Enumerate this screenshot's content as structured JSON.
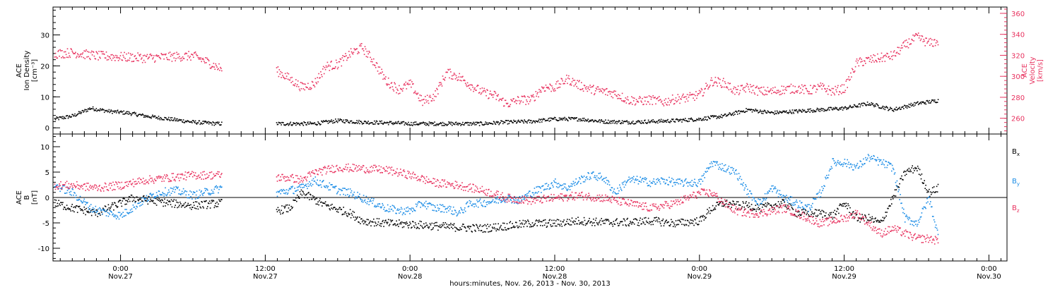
{
  "colors": {
    "black": "#000000",
    "pink": "#e8325f",
    "blue": "#1a8ce6"
  },
  "xaxis": {
    "label": "hours:minutes, Nov. 26, 2013 - Nov. 30, 2013",
    "ticks": [
      {
        "x": 18,
        "time": "0:00",
        "date": "Nov.27"
      },
      {
        "x": 30,
        "time": "12:00",
        "date": "Nov.27"
      },
      {
        "x": 42,
        "time": "0:00",
        "date": "Nov.28"
      },
      {
        "x": 54,
        "time": "12:00",
        "date": "Nov.28"
      },
      {
        "x": 66,
        "time": "0:00",
        "date": "Nov.29"
      },
      {
        "x": 78,
        "time": "12:00",
        "date": "Nov.29"
      },
      {
        "x": 90,
        "time": "0:00",
        "date": "Nov.30"
      }
    ]
  },
  "chart_data": [
    {
      "type": "scatter",
      "xunit": "hours since Nov. 26, 2013 00:00",
      "xlim": [
        12.4,
        91.5
      ],
      "left_axis": {
        "label_lines": [
          "ACE",
          "Ion Density",
          "[cm⁻³]"
        ],
        "ylim": [
          -2,
          39
        ],
        "ticks": [
          0,
          10,
          20,
          30
        ]
      },
      "right_axis": {
        "label_lines": [
          "ACE",
          "Velocity",
          "[km/s]"
        ],
        "ylim": [
          245,
          366
        ],
        "ticks": [
          260,
          280,
          300,
          320,
          340,
          360
        ]
      },
      "series": [
        {
          "axis": "left",
          "color": "black",
          "gap": [
            26.5,
            30.8
          ],
          "x": [
            12.5,
            14,
            15.5,
            17,
            18.5,
            20,
            22,
            24,
            26,
            26.4,
            30.9,
            32,
            34,
            36,
            38,
            40,
            42,
            44,
            46,
            48,
            50,
            52,
            54,
            56,
            58,
            60,
            62,
            64,
            66,
            68,
            70,
            72,
            74,
            76,
            78,
            80,
            82,
            84,
            85.8
          ],
          "y": [
            3,
            4,
            6.5,
            5.5,
            5,
            4,
            3,
            2,
            1.5,
            1.5,
            1.5,
            1.5,
            1.5,
            2.5,
            2,
            1.8,
            1.5,
            1.5,
            1.5,
            1.5,
            2,
            2.2,
            3,
            3,
            2.2,
            2,
            2.2,
            2.5,
            3,
            4,
            6,
            5,
            5.5,
            6,
            6.5,
            8,
            6,
            8,
            9
          ]
        },
        {
          "axis": "right",
          "color": "pink",
          "gap": [
            26.5,
            30.8
          ],
          "x": [
            12.5,
            14,
            16,
            18,
            20,
            22,
            24,
            25,
            26.4,
            30.9,
            32,
            33,
            34,
            35,
            36,
            37,
            38,
            39,
            40,
            41,
            42,
            43,
            44,
            45,
            46,
            47,
            48,
            49,
            50,
            51,
            52,
            53,
            54,
            55,
            56,
            57,
            58,
            59,
            60,
            61,
            62,
            63,
            64,
            65,
            66,
            67,
            68,
            69,
            70,
            71,
            72,
            73,
            74,
            75,
            76,
            77,
            78,
            79,
            80,
            81,
            82,
            83,
            84,
            85,
            85.8
          ],
          "y": [
            322,
            323,
            320,
            319,
            318,
            319,
            320,
            315,
            307,
            306,
            298,
            290,
            293,
            310,
            312,
            322,
            328,
            314,
            296,
            288,
            293,
            276,
            282,
            304,
            300,
            292,
            285,
            282,
            274,
            278,
            278,
            290,
            290,
            298,
            292,
            288,
            286,
            284,
            278,
            277,
            278,
            276,
            279,
            280,
            283,
            296,
            294,
            286,
            290,
            286,
            286,
            288,
            289,
            287,
            290,
            286,
            289,
            313,
            316,
            318,
            320,
            330,
            338,
            332,
            334
          ]
        }
      ]
    },
    {
      "type": "scatter",
      "xunit": "hours since Nov. 26, 2013 00:00",
      "xlim": [
        12.4,
        91.5
      ],
      "left_axis": {
        "label_lines": [
          "ACE",
          "B",
          "[nT]"
        ],
        "ylim": [
          -12.5,
          12.5
        ],
        "ticks": [
          -10,
          -5,
          0,
          5,
          10
        ]
      },
      "legend": {
        "placement": "right",
        "entries": [
          "Bx",
          "By",
          "Bz"
        ]
      },
      "series": [
        {
          "name": "Bx",
          "color": "black",
          "gap": [
            26.5,
            30.8
          ],
          "x": [
            12.5,
            14,
            16,
            17.5,
            19,
            20.5,
            22,
            24,
            26.4,
            30.9,
            32,
            33,
            35,
            37,
            38,
            40,
            42,
            44,
            46,
            48,
            50,
            52,
            54,
            56,
            58,
            60,
            62,
            64,
            66,
            67,
            68,
            69,
            70,
            71,
            72,
            73,
            74,
            75,
            76,
            77,
            78,
            79,
            80,
            81,
            82,
            83,
            84,
            85,
            85.8
          ],
          "y": [
            -1,
            -2,
            -3,
            -1.5,
            0,
            -0.5,
            -1,
            -1.5,
            -1,
            -2.5,
            -2,
            1,
            -1.5,
            -3,
            -4.5,
            -5,
            -5.2,
            -5.5,
            -5.8,
            -6,
            -5.5,
            -5,
            -5,
            -4.5,
            -4.8,
            -4.8,
            -4.5,
            -5,
            -4.5,
            -2,
            -1,
            -1.5,
            -1.5,
            -2,
            -1.5,
            -1,
            -3,
            -3,
            -3,
            -3.5,
            -1,
            -4,
            -4,
            -5,
            0,
            5,
            6,
            1,
            2
          ]
        },
        {
          "name": "By",
          "color": "blue",
          "gap": [
            26.5,
            30.8
          ],
          "x": [
            12.5,
            14,
            15.5,
            17,
            18,
            19.5,
            21,
            22.5,
            24,
            26.4,
            30.9,
            32,
            33,
            34,
            35,
            36,
            37,
            38,
            39,
            40,
            41,
            42,
            43,
            44,
            45,
            46,
            47,
            48,
            49,
            50,
            51,
            52,
            53,
            54,
            55,
            56,
            57,
            58,
            59,
            60,
            61,
            62,
            63,
            64,
            65,
            66,
            67,
            68,
            69,
            70,
            71,
            72,
            73,
            74,
            75,
            76,
            77,
            78,
            79,
            80,
            81,
            82,
            83,
            84,
            85,
            85.8
          ],
          "y": [
            2.5,
            1,
            -2,
            -3,
            -3.5,
            -1,
            1,
            1.5,
            0.5,
            2,
            1,
            1.5,
            2,
            3.5,
            2.5,
            1.5,
            1,
            0,
            -1,
            -2,
            -2.5,
            -2.5,
            -1,
            -2,
            -2,
            -3,
            -1,
            -1,
            -0.5,
            0,
            -0.5,
            1,
            2,
            3,
            2,
            3.5,
            4.5,
            4,
            1,
            3.5,
            3.5,
            3,
            3.5,
            3,
            3,
            3,
            7,
            6,
            5,
            1,
            -1,
            2,
            0,
            -1,
            -2,
            1,
            7,
            7,
            6,
            8,
            7,
            6,
            -4,
            -5,
            0,
            -8
          ]
        },
        {
          "name": "Bz",
          "color": "pink",
          "gap": [
            26.5,
            30.8
          ],
          "x": [
            12.5,
            14,
            16,
            18,
            20,
            22,
            24,
            26.4,
            30.9,
            32,
            33,
            34,
            35,
            36,
            38,
            40,
            42,
            44,
            46,
            48,
            50,
            52,
            54,
            56,
            58,
            60,
            62,
            64,
            66,
            67,
            68,
            69,
            70,
            71,
            72,
            73,
            74,
            75,
            76,
            77,
            78,
            79,
            80,
            81,
            82,
            83,
            84,
            85,
            85.8
          ],
          "y": [
            2.5,
            2.5,
            2,
            2.5,
            3.5,
            4,
            4.5,
            4.5,
            4,
            4,
            3.5,
            5,
            5.5,
            6,
            5.8,
            5.5,
            4.5,
            3,
            2.5,
            1.5,
            0,
            -0.5,
            0,
            0.5,
            0,
            -1,
            -2,
            -1,
            1,
            1,
            -1,
            -2.5,
            -3,
            -3,
            -2.5,
            -2,
            -3,
            -4,
            -5,
            -4.5,
            -4,
            -3,
            -5,
            -7,
            -6,
            -7,
            -8,
            -8,
            -8.5
          ]
        }
      ]
    }
  ]
}
